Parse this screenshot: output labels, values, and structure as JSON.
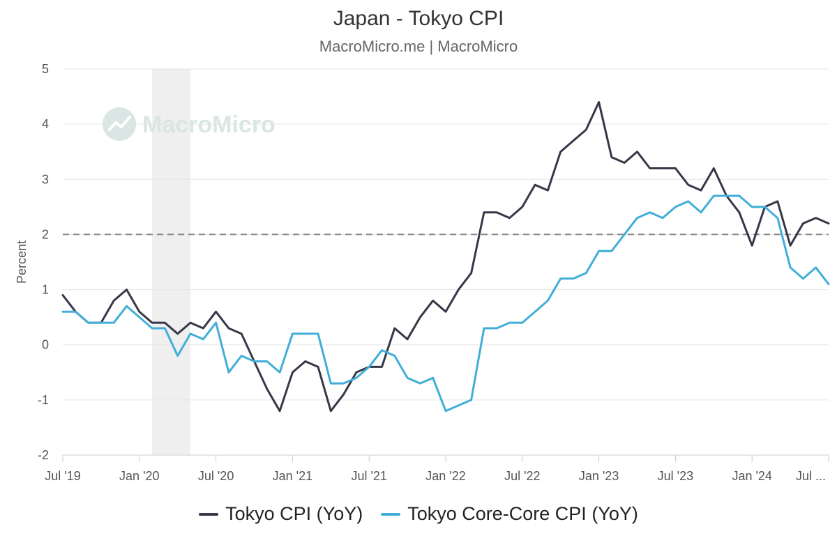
{
  "header": {
    "title": "Japan - Tokyo CPI",
    "subtitle": "MacroMicro.me | MacroMicro"
  },
  "watermark": {
    "text": "MacroMicro"
  },
  "colors": {
    "tokyo_cpi": "#363848",
    "core_core": "#41aed9",
    "recession_band": "#efefef",
    "reference_line": "#8a8a8a",
    "watermark": "#d9e6e4"
  },
  "chart_data": {
    "type": "line",
    "title": "Japan - Tokyo CPI",
    "subtitle": "MacroMicro.me | MacroMicro",
    "xlabel": "",
    "ylabel": "Percent",
    "ylim": [
      -2,
      5
    ],
    "yticks": [
      -2,
      -1,
      0,
      1,
      2,
      3,
      4,
      5
    ],
    "grid": true,
    "legend_position": "bottom-center",
    "x_start": "Jul 2019",
    "x_step": "month",
    "xtick_labels": [
      {
        "label": "Jul '19",
        "index": 0
      },
      {
        "label": "Jan '20",
        "index": 6
      },
      {
        "label": "Jul '20",
        "index": 12
      },
      {
        "label": "Jan '21",
        "index": 18
      },
      {
        "label": "Jul '21",
        "index": 24
      },
      {
        "label": "Jan '22",
        "index": 30
      },
      {
        "label": "Jul '22",
        "index": 36
      },
      {
        "label": "Jan '23",
        "index": 42
      },
      {
        "label": "Jul '23",
        "index": 48
      },
      {
        "label": "Jan '24",
        "index": 54
      },
      {
        "label": "Jul ...",
        "index": 60
      }
    ],
    "x_range_index": [
      0,
      60
    ],
    "shaded_period": {
      "start_index": 7,
      "end_index": 10,
      "label": "recession"
    },
    "reference_line": {
      "y": 2,
      "style": "dashed"
    },
    "series": [
      {
        "name": "Tokyo CPI (YoY)",
        "color": "#363848",
        "values": [
          0.9,
          0.6,
          0.4,
          0.4,
          0.8,
          1.0,
          0.6,
          0.4,
          0.4,
          0.2,
          0.4,
          0.3,
          0.6,
          0.3,
          0.2,
          -0.3,
          -0.8,
          -1.2,
          -0.5,
          -0.3,
          -0.4,
          -1.2,
          -0.9,
          -0.5,
          -0.4,
          -0.4,
          0.3,
          0.1,
          0.5,
          0.8,
          0.6,
          1.0,
          1.3,
          2.4,
          2.4,
          2.3,
          2.5,
          2.9,
          2.8,
          3.5,
          3.7,
          3.9,
          4.4,
          3.4,
          3.3,
          3.5,
          3.2,
          3.2,
          3.2,
          2.9,
          2.8,
          3.2,
          2.7,
          2.4,
          1.8,
          2.5,
          2.6,
          1.8,
          2.2,
          2.3,
          2.2
        ]
      },
      {
        "name": "Tokyo Core-Core CPI (YoY)",
        "color": "#41aed9",
        "values": [
          0.6,
          0.6,
          0.4,
          0.4,
          0.4,
          0.7,
          0.5,
          0.3,
          0.3,
          -0.2,
          0.2,
          0.1,
          0.4,
          -0.5,
          -0.2,
          -0.3,
          -0.3,
          -0.5,
          0.2,
          0.2,
          0.2,
          -0.7,
          -0.7,
          -0.6,
          -0.4,
          -0.1,
          -0.2,
          -0.6,
          -0.7,
          -0.6,
          -1.2,
          -1.1,
          -1.0,
          0.3,
          0.3,
          0.4,
          0.4,
          0.6,
          0.8,
          1.2,
          1.2,
          1.3,
          1.7,
          1.7,
          2.0,
          2.3,
          2.4,
          2.3,
          2.5,
          2.6,
          2.4,
          2.7,
          2.7,
          2.7,
          2.5,
          2.5,
          2.3,
          1.4,
          1.2,
          1.4,
          1.1
        ]
      }
    ]
  }
}
